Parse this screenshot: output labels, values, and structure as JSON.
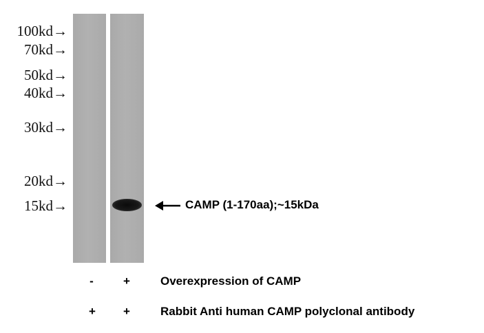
{
  "markers": [
    {
      "label": "100kd→"
    },
    {
      "label": "70kd→"
    },
    {
      "label": "50kd→"
    },
    {
      "label": "40kd→"
    },
    {
      "label": "30kd→"
    },
    {
      "label": "20kd→"
    },
    {
      "label": "15kd→"
    }
  ],
  "band_label": "CAMP (1-170aa);~15kDa",
  "rows": [
    {
      "lane1": "-",
      "lane2": "+",
      "label": "Overexpression of  CAMP"
    },
    {
      "lane1": "+",
      "lane2": "+",
      "label": "Rabbit Anti human CAMP polyclonal antibody"
    }
  ],
  "colors": {
    "lane": "#acacac",
    "band": "#111111",
    "text": "#000000"
  }
}
